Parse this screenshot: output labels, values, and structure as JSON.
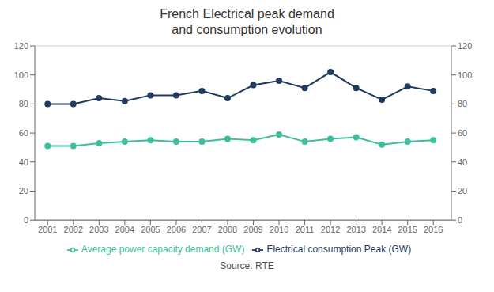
{
  "chart_data": {
    "type": "line",
    "title": "French Electrical peak demand",
    "subtitle": "and consumption evolution",
    "annotations": [
      "Source: RTE"
    ],
    "x": [
      2001,
      2002,
      2003,
      2004,
      2005,
      2006,
      2007,
      2008,
      2009,
      2010,
      2011,
      2012,
      2013,
      2014,
      2015,
      2016
    ],
    "series": [
      {
        "name": "Average power capacity demand (GW)",
        "color": "#3dbf9e",
        "marker": "circle",
        "values": [
          51,
          51,
          53,
          54,
          55,
          54,
          54,
          56,
          55,
          59,
          54,
          56,
          57,
          52,
          54,
          55
        ]
      },
      {
        "name": "Electrical consumption Peak (GW)",
        "color": "#1f3a5f",
        "marker": "circle",
        "values": [
          80,
          80,
          84,
          82,
          86,
          86,
          89,
          84,
          93,
          96,
          91,
          102,
          91,
          83,
          92,
          89
        ]
      }
    ],
    "xlim": [
      2000.5,
      2016.7
    ],
    "xticks": [
      2001,
      2002,
      2003,
      2004,
      2005,
      2006,
      2007,
      2008,
      2009,
      2010,
      2011,
      2012,
      2013,
      2014,
      2015,
      2016
    ],
    "ylim": [
      0,
      120
    ],
    "yticks": [
      0,
      20,
      40,
      60,
      80,
      100,
      120
    ],
    "y2lim": [
      0,
      120
    ],
    "y2ticks": [
      0,
      20,
      40,
      60,
      80,
      100,
      120
    ],
    "grid": true
  }
}
